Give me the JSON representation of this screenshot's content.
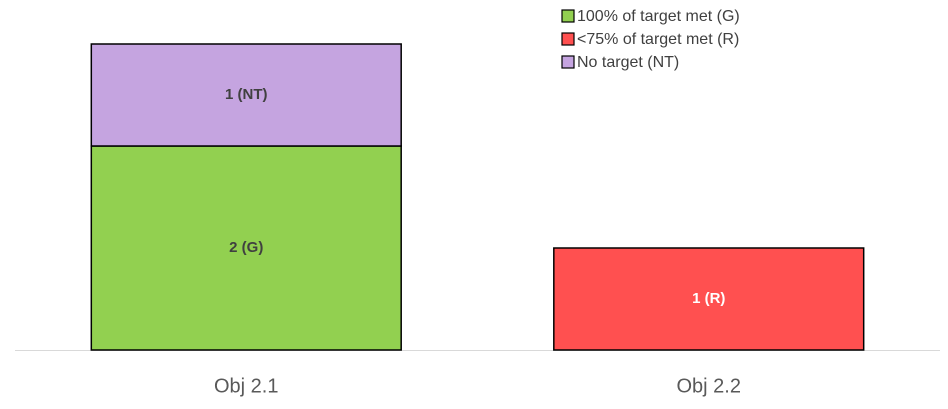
{
  "chart_data": {
    "type": "stacked_bar",
    "categories": [
      "Obj 2.1",
      "Obj 2.2"
    ],
    "series": [
      {
        "name": "100% of target met (G)",
        "color": "#92d050",
        "values": [
          2,
          null
        ],
        "value_labels": [
          "2 (G)",
          null
        ]
      },
      {
        "name": "<75% of target met (R)",
        "color": "#ff5050",
        "values": [
          null,
          1
        ],
        "value_labels": [
          null,
          "1 (R)"
        ]
      },
      {
        "name": "No target (NT)",
        "color": "#c5a4e0",
        "values": [
          1,
          null
        ],
        "value_labels": [
          "1 (NT)",
          null
        ]
      }
    ],
    "ylim": [
      0,
      3
    ],
    "legend": "top-right"
  }
}
